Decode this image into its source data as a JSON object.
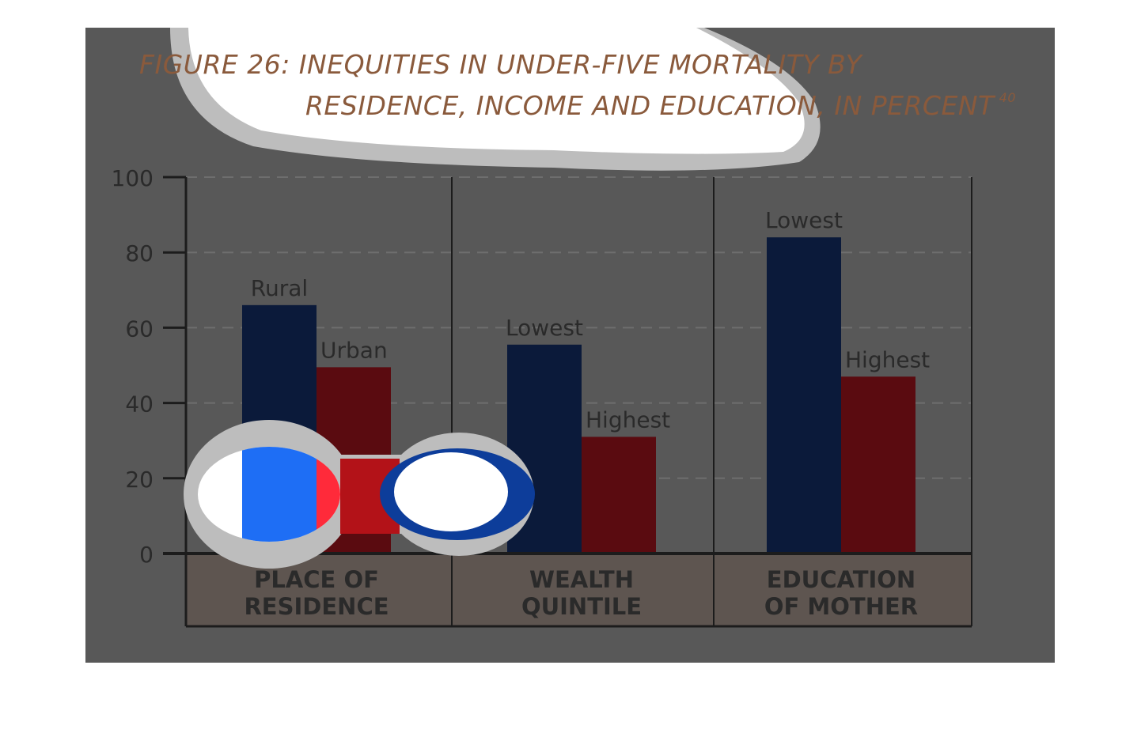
{
  "title": {
    "line1": "FIGURE 26: INEQUITIES IN UNDER-FIVE MORTALITY BY",
    "line2": "RESIDENCE, INCOME AND EDUCATION, IN PERCENT",
    "footnote": "40"
  },
  "colors": {
    "background_panel": "#585858",
    "category_band": "#5e5550",
    "low_bar": "#0b1a3a",
    "high_bar": "#5a0b10",
    "highlight_blue": "#1e6ef5",
    "highlight_red": "#ff2a3a",
    "title": "#8a5a3c"
  },
  "chart_data": {
    "type": "bar",
    "ylim": [
      0,
      100
    ],
    "y_ticks": [
      0,
      20,
      40,
      60,
      80,
      100
    ],
    "grid": "dashed horizontal",
    "groups": [
      {
        "category": [
          "PLACE OF",
          "RESIDENCE"
        ],
        "bars": [
          {
            "label": "Rural",
            "value": 66,
            "color": "low"
          },
          {
            "label": "Urban",
            "value": 49.5,
            "color": "high"
          }
        ]
      },
      {
        "category": [
          "WEALTH",
          "QUINTILE"
        ],
        "bars": [
          {
            "label": "Lowest",
            "value": 55.5,
            "color": "low"
          },
          {
            "label": "Highest",
            "value": 31,
            "color": "high"
          }
        ]
      },
      {
        "category": [
          "EDUCATION",
          "OF MOTHER"
        ],
        "bars": [
          {
            "label": "Lowest",
            "value": 84,
            "color": "low"
          },
          {
            "label": "Highest",
            "value": 47,
            "color": "high"
          }
        ]
      }
    ]
  }
}
